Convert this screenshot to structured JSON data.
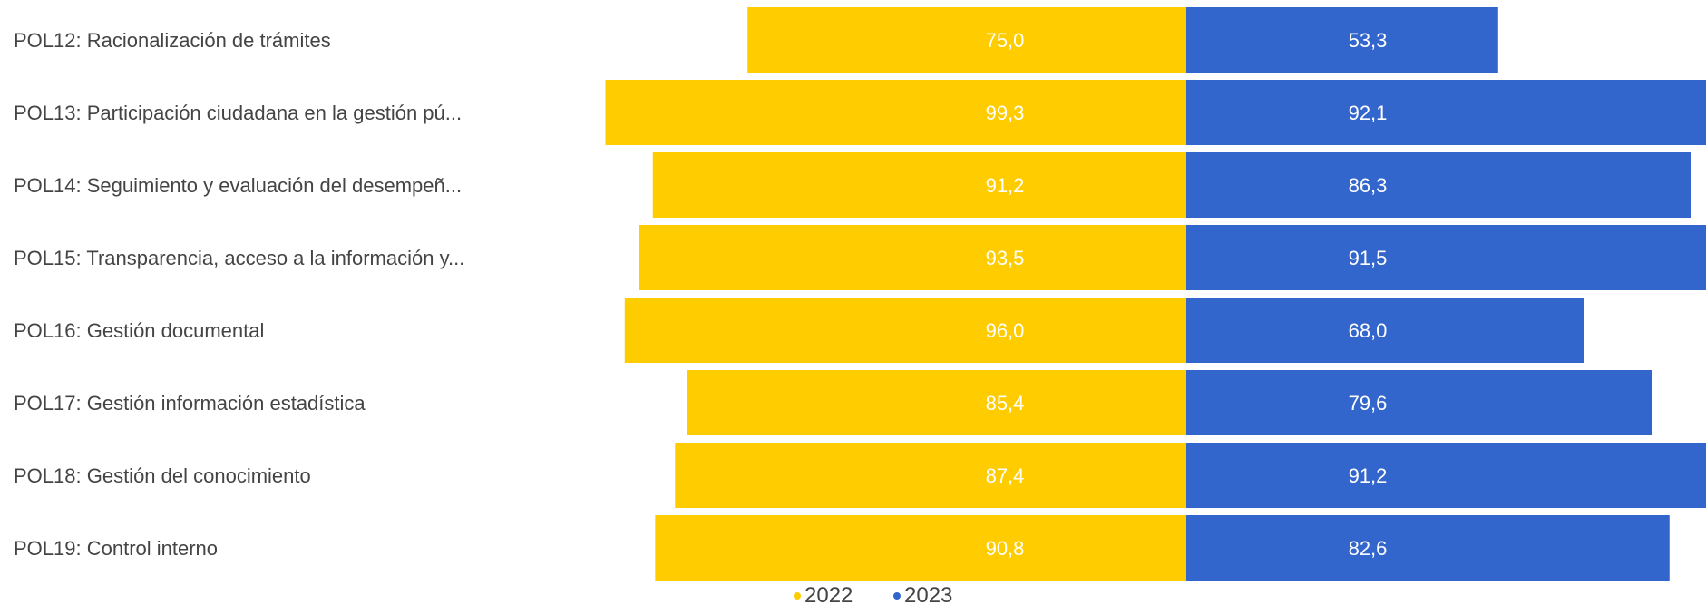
{
  "chart_data": {
    "type": "bar",
    "orientation": "horizontal-diverging",
    "categories": [
      "POL12: Racionalización de trámites",
      "POL13: Participación ciudadana en la gestión pú...",
      "POL14: Seguimiento y evaluación del desempeñ...",
      "POL15: Transparencia, acceso a la información y...",
      "POL16: Gestión documental",
      "POL17: Gestión información estadística",
      "POL18: Gestión del conocimiento",
      "POL19: Control interno"
    ],
    "series": [
      {
        "name": "2022",
        "color": "#FFCC00",
        "label_color": "#FFFFFF",
        "side": "left",
        "values": [
          75.0,
          99.3,
          91.2,
          93.5,
          96.0,
          85.4,
          87.4,
          90.8
        ],
        "value_labels": [
          "75,0",
          "99,3",
          "91,2",
          "93,5",
          "96,0",
          "85,4",
          "87,4",
          "90,8"
        ]
      },
      {
        "name": "2023",
        "color": "#3366CC",
        "label_color": "#FFFFFF",
        "side": "right",
        "values": [
          53.3,
          92.1,
          86.3,
          91.5,
          68.0,
          79.6,
          91.2,
          82.6
        ],
        "value_labels": [
          "53,3",
          "92,1",
          "86,3",
          "91,5",
          "68,0",
          "79,6",
          "91,2",
          "82,6"
        ]
      }
    ],
    "legend": {
      "position": "bottom",
      "items": [
        "2022",
        "2023"
      ],
      "marker": "•"
    },
    "grid": false
  }
}
